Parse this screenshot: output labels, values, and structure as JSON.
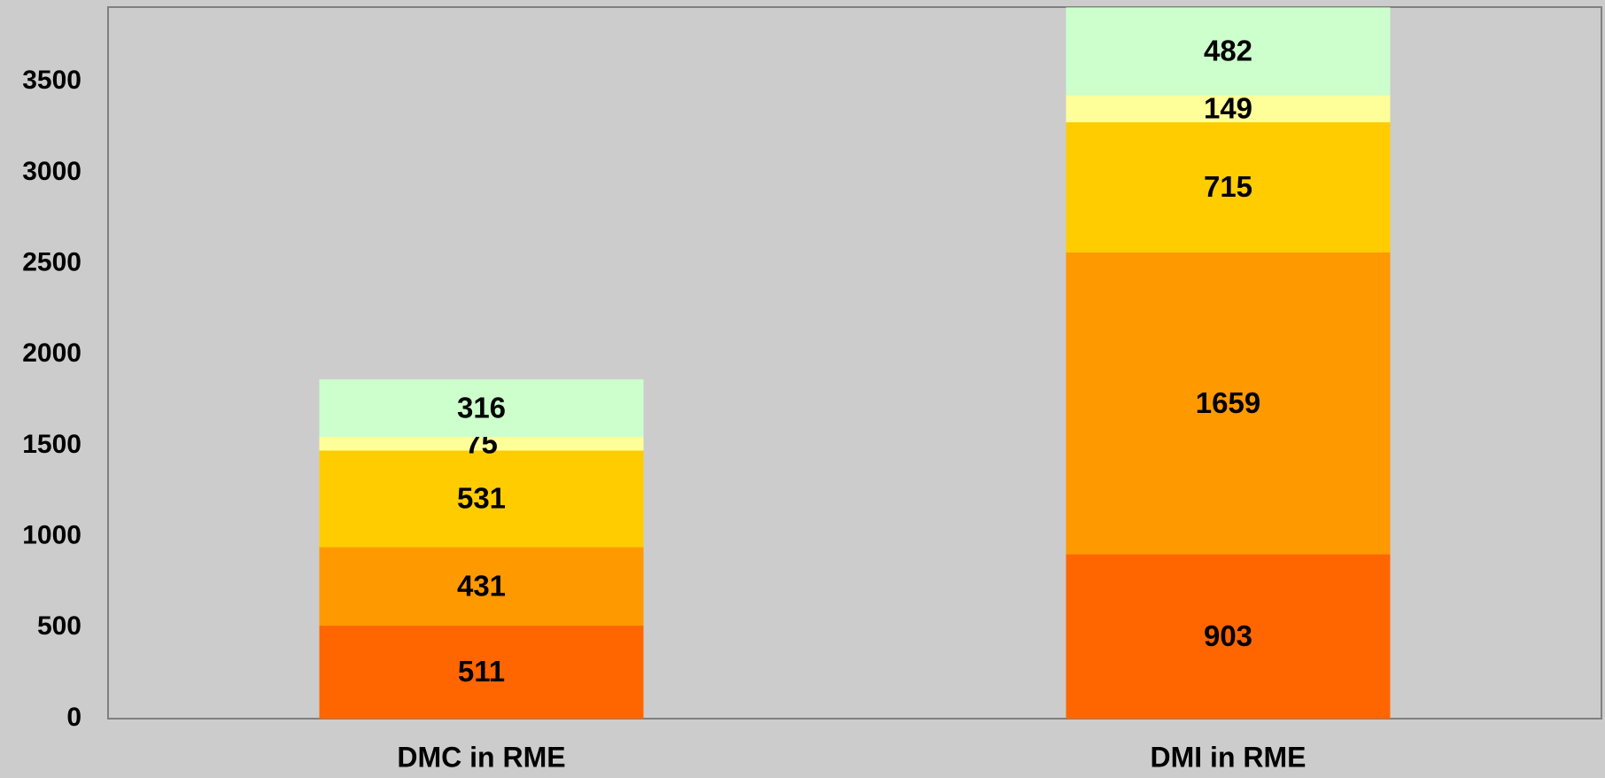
{
  "chart_data": {
    "type": "stacked_bar",
    "categories": [
      "DMC in RME",
      "DMI in RME"
    ],
    "series": [
      {
        "color": "#ff6600",
        "values": [
          511,
          903
        ]
      },
      {
        "color": "#ff9900",
        "values": [
          431,
          1659
        ]
      },
      {
        "color": "#ffcc00",
        "values": [
          531,
          715
        ]
      },
      {
        "color": "#ffff99",
        "values": [
          75,
          149
        ]
      },
      {
        "color": "#ccffcc",
        "values": [
          316,
          482
        ]
      }
    ],
    "ylim": [
      0,
      3910
    ],
    "yticks": [
      0,
      500,
      1000,
      1500,
      2000,
      2500,
      3000,
      3500
    ],
    "grid": false,
    "legend": false
  }
}
